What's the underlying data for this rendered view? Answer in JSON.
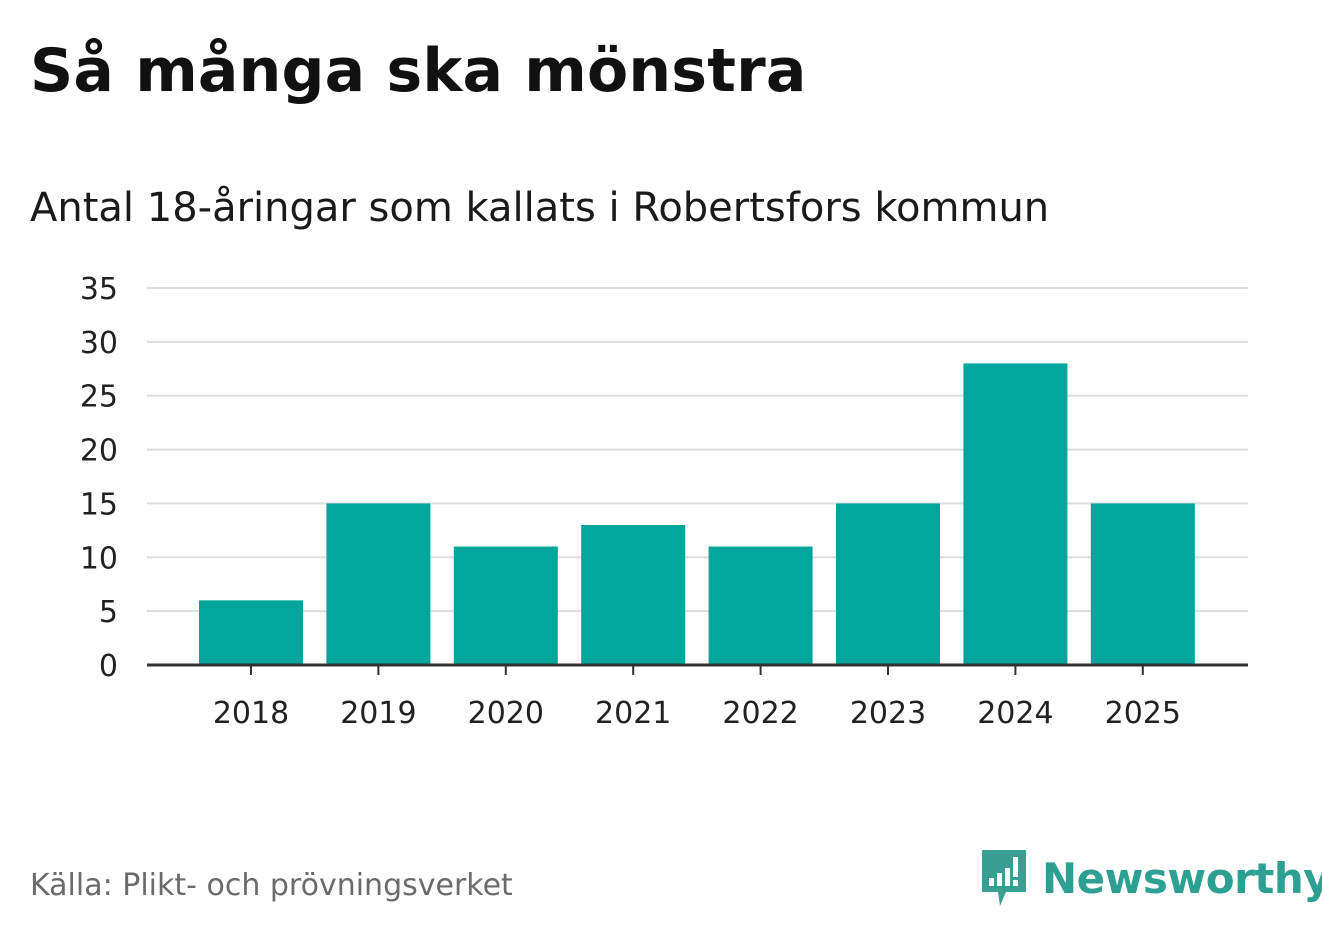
{
  "title": "Så många ska mönstra",
  "subtitle": "Antal 18-åringar som kallats i Robertsfors kommun",
  "source": "Källa: Plikt- och prövningsverket",
  "brand": {
    "name": "Newsworthy",
    "icon": "newsworthy-logo-icon",
    "color": "#3a9e93"
  },
  "colors": {
    "bar": "#00a59b",
    "grid": "#dddddd",
    "axis": "#333333",
    "text": "#222222"
  },
  "chart_data": {
    "type": "bar",
    "title": "Så många ska mönstra",
    "subtitle": "Antal 18-åringar som kallats i Robertsfors kommun",
    "xlabel": "",
    "ylabel": "",
    "categories": [
      "2018",
      "2019",
      "2020",
      "2021",
      "2022",
      "2023",
      "2024",
      "2025"
    ],
    "values": [
      6,
      15,
      11,
      13,
      11,
      15,
      28,
      15
    ],
    "ylim": [
      0,
      35
    ],
    "yticks": [
      0,
      5,
      10,
      15,
      20,
      25,
      30,
      35
    ],
    "grid": true,
    "legend": "none"
  }
}
